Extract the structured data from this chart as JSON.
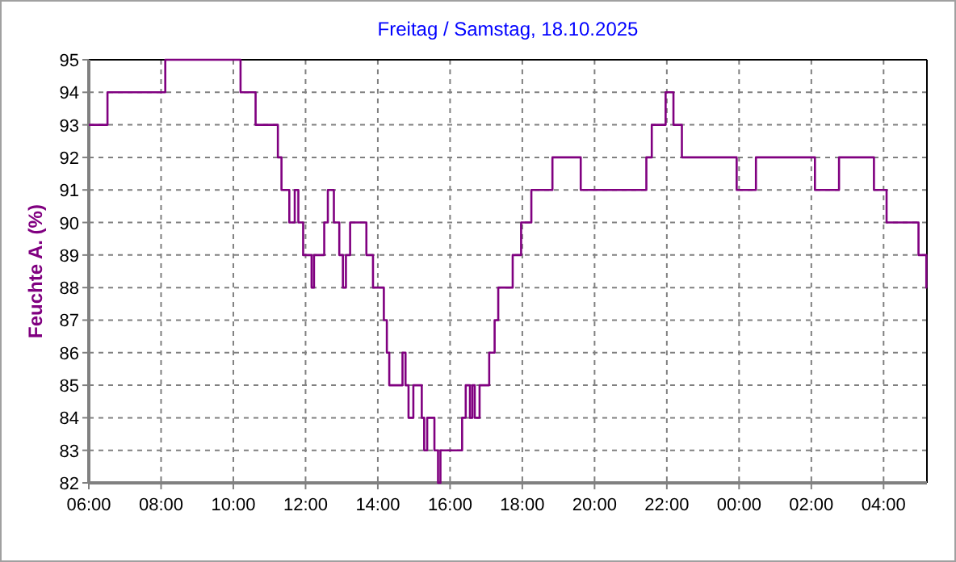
{
  "chart_data": {
    "type": "step",
    "title": "Freitag / Samstag, 18.10.2025",
    "ylabel": "Feuchte A. (%)",
    "xlim": [
      "2025-10-17T06:00",
      "2025-10-18T05:12"
    ],
    "xticks": [
      {
        "value": "2025-10-17T06:00",
        "label": "06:00"
      },
      {
        "value": "2025-10-17T08:00",
        "label": "08:00"
      },
      {
        "value": "2025-10-17T10:00",
        "label": "10:00"
      },
      {
        "value": "2025-10-17T12:00",
        "label": "12:00"
      },
      {
        "value": "2025-10-17T14:00",
        "label": "14:00"
      },
      {
        "value": "2025-10-17T16:00",
        "label": "16:00"
      },
      {
        "value": "2025-10-17T18:00",
        "label": "18:00"
      },
      {
        "value": "2025-10-17T20:00",
        "label": "20:00"
      },
      {
        "value": "2025-10-17T22:00",
        "label": "22:00"
      },
      {
        "value": "2025-10-18T00:00",
        "label": "00:00"
      },
      {
        "value": "2025-10-18T02:00",
        "label": "02:00"
      },
      {
        "value": "2025-10-18T04:00",
        "label": "04:00"
      }
    ],
    "ylim": [
      82,
      95
    ],
    "yticks": [
      82,
      83,
      84,
      85,
      86,
      87,
      88,
      89,
      90,
      91,
      92,
      93,
      94,
      95
    ],
    "grid": true,
    "series": [
      {
        "color": "#800080",
        "x": [
          "2025-10-17T06:00",
          "2025-10-17T06:31",
          "2025-10-17T08:07",
          "2025-10-17T10:12",
          "2025-10-17T10:37",
          "2025-10-17T11:14",
          "2025-10-17T11:20",
          "2025-10-17T11:33",
          "2025-10-17T11:42",
          "2025-10-17T11:48",
          "2025-10-17T11:56",
          "2025-10-17T12:10",
          "2025-10-17T12:14",
          "2025-10-17T12:31",
          "2025-10-17T12:37",
          "2025-10-17T12:47",
          "2025-10-17T12:56",
          "2025-10-17T13:02",
          "2025-10-17T13:07",
          "2025-10-17T13:14",
          "2025-10-17T13:41",
          "2025-10-17T13:52",
          "2025-10-17T14:10",
          "2025-10-17T14:15",
          "2025-10-17T14:19",
          "2025-10-17T14:41",
          "2025-10-17T14:46",
          "2025-10-17T14:51",
          "2025-10-17T14:59",
          "2025-10-17T15:13",
          "2025-10-17T15:17",
          "2025-10-17T15:22",
          "2025-10-17T15:34",
          "2025-10-17T15:40",
          "2025-10-17T15:44",
          "2025-10-17T16:20",
          "2025-10-17T16:26",
          "2025-10-17T16:33",
          "2025-10-17T16:37",
          "2025-10-17T16:41",
          "2025-10-17T16:49",
          "2025-10-17T17:05",
          "2025-10-17T17:14",
          "2025-10-17T17:20",
          "2025-10-17T17:44",
          "2025-10-17T17:58",
          "2025-10-17T18:15",
          "2025-10-17T18:50",
          "2025-10-17T19:37",
          "2025-10-17T21:26",
          "2025-10-17T21:35",
          "2025-10-17T21:58",
          "2025-10-17T22:11",
          "2025-10-17T22:25",
          "2025-10-17T23:56",
          "2025-10-18T00:28",
          "2025-10-18T02:06",
          "2025-10-18T02:46",
          "2025-10-18T03:44",
          "2025-10-18T04:05",
          "2025-10-18T04:58",
          "2025-10-18T05:11",
          "2025-10-18T05:12"
        ],
        "values": [
          93,
          94,
          95,
          94,
          93,
          92,
          91,
          90,
          91,
          90,
          89,
          88,
          89,
          90,
          91,
          90,
          89,
          88,
          89,
          90,
          89,
          88,
          87,
          86,
          85,
          86,
          85,
          84,
          85,
          84,
          83,
          84,
          83,
          82,
          83,
          84,
          85,
          84,
          85,
          84,
          85,
          86,
          87,
          88,
          89,
          90,
          91,
          92,
          91,
          92,
          93,
          94,
          93,
          92,
          91,
          92,
          91,
          92,
          91,
          90,
          89,
          88,
          88
        ]
      }
    ]
  }
}
